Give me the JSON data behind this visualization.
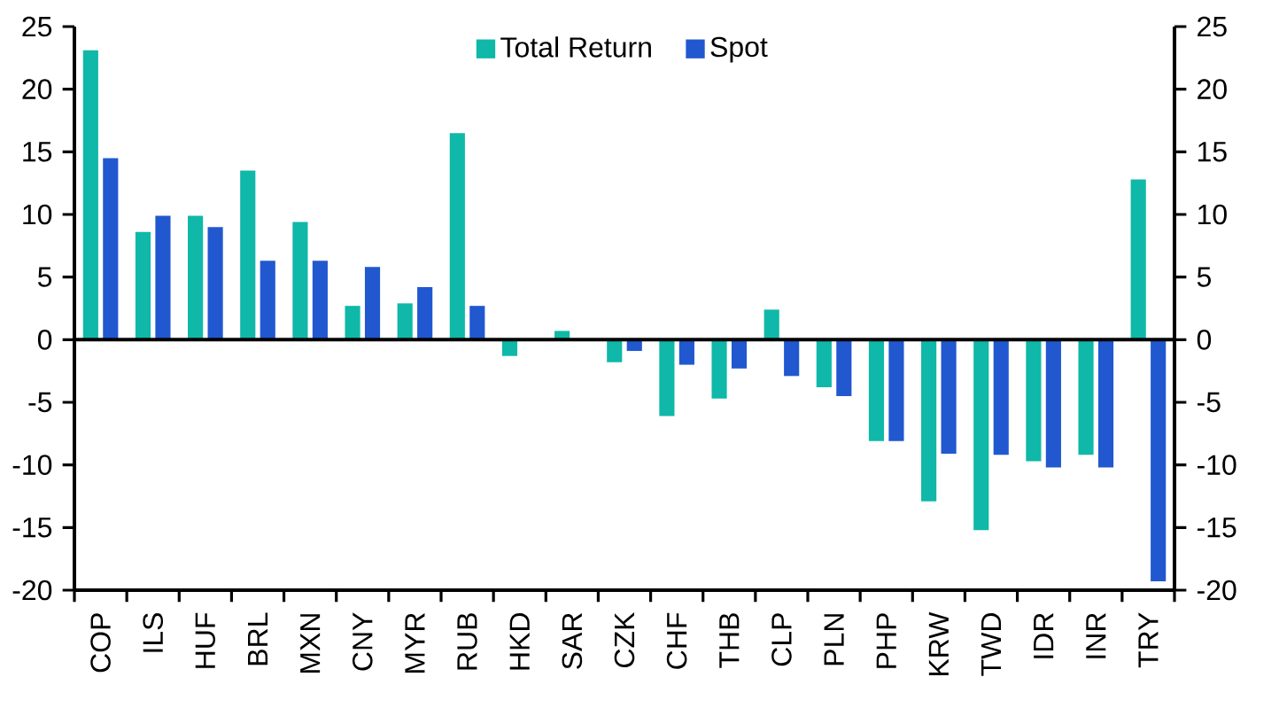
{
  "chart_data": {
    "type": "bar",
    "categories": [
      "COP",
      "ILS",
      "HUF",
      "BRL",
      "MXN",
      "CNY",
      "MYR",
      "RUB",
      "HKD",
      "SAR",
      "CZK",
      "CHF",
      "THB",
      "CLP",
      "PLN",
      "PHP",
      "KRW",
      "TWD",
      "IDR",
      "INR",
      "TRY"
    ],
    "series": [
      {
        "name": "Total Return",
        "color": "#0fb8a8",
        "values": [
          23.1,
          8.6,
          9.9,
          13.5,
          9.4,
          2.7,
          2.9,
          16.5,
          -1.3,
          0.7,
          -1.8,
          -6.1,
          -4.7,
          2.4,
          -3.8,
          -8.1,
          -12.9,
          -15.2,
          -9.7,
          -9.2,
          12.8
        ]
      },
      {
        "name": "Spot",
        "color": "#2158d0",
        "values": [
          14.5,
          9.9,
          9.0,
          6.3,
          6.3,
          5.8,
          4.2,
          2.7,
          null,
          null,
          -0.9,
          -2.0,
          -2.3,
          -2.9,
          -4.5,
          -8.1,
          -9.1,
          -9.2,
          -10.2,
          -10.2,
          -19.3
        ]
      }
    ],
    "ylim": [
      -20,
      25
    ],
    "yticks": [
      -20,
      -15,
      -10,
      -5,
      0,
      5,
      10,
      15,
      20,
      25
    ],
    "y2lim": [
      -20,
      25
    ],
    "y2ticks": [
      -20,
      -15,
      -10,
      -5,
      0,
      5,
      10,
      15,
      20,
      25
    ],
    "legend": "top"
  }
}
